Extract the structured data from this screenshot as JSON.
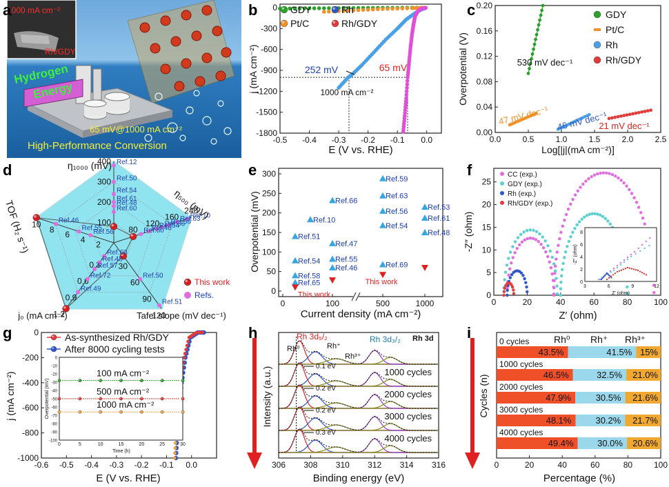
{
  "labels": {
    "a": "a",
    "b": "b",
    "c": "c",
    "d": "d",
    "e": "e",
    "f": "f",
    "g": "g",
    "h": "h",
    "i": "i"
  },
  "panel_a": {
    "inset_text": "1000 mA cm⁻²",
    "inset_label": "Rh/GDY",
    "text_hydrogen": "Hydrogen",
    "text_energy": "Energy",
    "text_metric": "65 mV@1000 mA cm⁻²",
    "text_conversion": "High-Performance Conversion",
    "colors": {
      "sky": "#8fc3ea",
      "sea": "#1a5f9e",
      "green": "#3ef03e",
      "yellow": "#f4ef3a"
    }
  },
  "chart_data": [
    {
      "id": "b",
      "type": "scatter",
      "xlabel": "E (V vs. RHE)",
      "ylabel": "j (mA cm⁻²)",
      "xlim": [
        -0.5,
        0.05
      ],
      "ylim": [
        -1800,
        50
      ],
      "xticks": [
        "-0.5",
        "-0.4",
        "-0.3",
        "-0.2",
        "-0.1",
        "0.0"
      ],
      "yticks": [
        "0",
        "-300",
        "-600",
        "-900",
        "-1200",
        "-1500",
        "-1800"
      ],
      "legend": [
        "GDY",
        "Pt/C",
        "Rh",
        "Rh/GDY"
      ],
      "colors": {
        "GDY": "#2aa02a",
        "Pt/C": "#f0922b",
        "Rh": "#2f56c9",
        "Rh/GDY": "#e33a3a",
        "RhLine": "#4aa0e6",
        "RhGDYLine": "#e14fd6"
      },
      "series": [
        {
          "name": "GDY",
          "points": [
            [
              -0.5,
              -15
            ],
            [
              -0.4,
              -10
            ],
            [
              -0.3,
              -7
            ],
            [
              -0.2,
              -4
            ],
            [
              -0.1,
              -2
            ],
            [
              0.0,
              0
            ]
          ]
        },
        {
          "name": "Pt/C",
          "points": [
            [
              -0.35,
              -60
            ],
            [
              -0.25,
              -40
            ],
            [
              -0.15,
              -20
            ],
            [
              -0.05,
              -8
            ],
            [
              0.0,
              0
            ]
          ]
        },
        {
          "name": "Rh",
          "points": [
            [
              -0.3,
              -1150
            ],
            [
              -0.27,
              -1010
            ],
            [
              -0.252,
              -950
            ],
            [
              -0.22,
              -820
            ],
            [
              -0.18,
              -640
            ],
            [
              -0.14,
              -460
            ],
            [
              -0.1,
              -300
            ],
            [
              -0.07,
              -170
            ],
            [
              -0.04,
              -80
            ],
            [
              -0.02,
              -30
            ],
            [
              0.0,
              0
            ]
          ]
        },
        {
          "name": "Rh/GDY",
          "points": [
            [
              -0.08,
              -1780
            ],
            [
              -0.075,
              -1550
            ],
            [
              -0.07,
              -1300
            ],
            [
              -0.065,
              -1000
            ],
            [
              -0.06,
              -780
            ],
            [
              -0.055,
              -560
            ],
            [
              -0.05,
              -380
            ],
            [
              -0.045,
              -240
            ],
            [
              -0.04,
              -130
            ],
            [
              -0.03,
              -50
            ],
            [
              -0.02,
              -15
            ],
            [
              0.0,
              0
            ]
          ]
        }
      ],
      "annotations": [
        "252 mV",
        "65 mV",
        "1000 mA cm⁻²"
      ]
    },
    {
      "id": "c",
      "type": "scatter",
      "xlabel": "Log[|j|(mA cm⁻²)]",
      "ylabel": "Overpotential (V)",
      "xlim": [
        0.0,
        2.5
      ],
      "ylim": [
        0.0,
        0.2
      ],
      "xticks": [
        "0.0",
        "0.5",
        "1.0",
        "1.5",
        "2.0",
        "2.5"
      ],
      "yticks": [
        "0.00",
        "0.04",
        "0.08",
        "0.12",
        "0.16",
        "0.20"
      ],
      "legend": [
        "GDY",
        "Pt/C",
        "Rh",
        "Rh/GDY"
      ],
      "colors": {
        "GDY": "#2aa02a",
        "Pt/C": "#f0922b",
        "Rh": "#4aa0e6",
        "Rh/GDY": "#e33a3a"
      },
      "series": [
        {
          "name": "GDY",
          "x": [
            0.5,
            0.72
          ],
          "y": [
            0.093,
            0.2
          ]
        },
        {
          "name": "Pt/C",
          "x": [
            0.22,
            0.62
          ],
          "y": [
            0.012,
            0.03
          ]
        },
        {
          "name": "Rh",
          "x": [
            0.95,
            1.42
          ],
          "y": [
            0.005,
            0.028
          ]
        },
        {
          "name": "Rh/GDY",
          "x": [
            1.72,
            2.35
          ],
          "y": [
            0.022,
            0.035
          ]
        }
      ],
      "annotations": [
        "530 mV dec⁻¹",
        "47 mV dec⁻¹",
        "46 mV dec⁻¹",
        "21 mV dec⁻¹"
      ]
    },
    {
      "id": "d",
      "type": "radar",
      "axes": [
        "η₁₀₀₀ (mV)",
        "η₅₀₀ (mV)",
        "Tafel slope (mV dec⁻¹)",
        "j₀ (mA cm⁻²)",
        "TOF (H₂ s⁻¹)"
      ],
      "axis_ticks": [
        [
          "100",
          "200",
          "300",
          "400"
        ],
        [
          "80",
          "120",
          "160",
          "240"
        ],
        [
          "30",
          "60",
          "90",
          "120"
        ],
        [
          "0.3",
          "0.6",
          "0.9",
          "1.2"
        ],
        [
          "2",
          "4",
          "6",
          "8",
          "10"
        ]
      ],
      "legend": [
        "This work",
        "Refs."
      ],
      "ref_labels": [
        "Ref.12",
        "Ref.50",
        "Ref.54",
        "Ref.61",
        "Ref.48",
        "Ref.60",
        "Ref.56",
        "Ref.10",
        "Ref.63",
        "Ref.56",
        "Ref.54",
        "Ref.48",
        "Ref.60",
        "Ref.46",
        "Ref.55",
        "Ref.56",
        "Ref.60",
        "Ref.48",
        "Ref.57",
        "Ref.72",
        "Ref.49",
        "Ref.50",
        "Ref.51"
      ],
      "colors": {
        "fill": "#8fe4ef",
        "this_work": "#d42020",
        "refs": "#e06ce0",
        "line": "#3b3b3b"
      }
    },
    {
      "id": "e",
      "type": "scatter",
      "xlabel": "Current density (mA cm⁻²)",
      "ylabel": "Overpotential (mV)",
      "xticks": [
        "0",
        "100",
        "500",
        "1000"
      ],
      "yticks": [
        "0",
        "50",
        "100",
        "150",
        "200",
        "250",
        "300"
      ],
      "ylim": [
        0,
        300
      ],
      "points": [
        {
          "x": 10,
          "y": 140,
          "label": "Ref.51"
        },
        {
          "x": 10,
          "y": 78,
          "label": "Ref.54"
        },
        {
          "x": 10,
          "y": 40,
          "label": "Ref.58"
        },
        {
          "x": 10,
          "y": 22,
          "label": "Ref.65"
        },
        {
          "x": 10,
          "y": 10,
          "label": "This work",
          "work": true
        },
        {
          "x": 50,
          "y": 183,
          "label": "Ref.10"
        },
        {
          "x": 100,
          "y": 232,
          "label": "Ref.66"
        },
        {
          "x": 100,
          "y": 122,
          "label": "Ref.47"
        },
        {
          "x": 100,
          "y": 82,
          "label": "Ref.55"
        },
        {
          "x": 100,
          "y": 60,
          "label": "Ref.46"
        },
        {
          "x": 100,
          "y": 28,
          "label": "",
          "work": true
        },
        {
          "x": 500,
          "y": 288,
          "label": "Ref.59"
        },
        {
          "x": 500,
          "y": 244,
          "label": "Ref.63"
        },
        {
          "x": 500,
          "y": 205,
          "label": "Ref.56"
        },
        {
          "x": 500,
          "y": 168,
          "label": "Ref.54"
        },
        {
          "x": 500,
          "y": 68,
          "label": "Ref.69"
        },
        {
          "x": 500,
          "y": 42,
          "label": "This work",
          "work": true
        },
        {
          "x": 1000,
          "y": 215,
          "label": "Ref.53"
        },
        {
          "x": 1000,
          "y": 187,
          "label": "Ref.61"
        },
        {
          "x": 1000,
          "y": 150,
          "label": "Ref.48"
        },
        {
          "x": 1000,
          "y": 60,
          "label": "",
          "work": true
        }
      ],
      "colors": {
        "ref": "#33a8e0",
        "work": "#e02020"
      }
    },
    {
      "id": "f",
      "type": "scatter",
      "xlabel": "Z′ (ohm)",
      "ylabel": "-Z″ (ohm)",
      "xlim": [
        0,
        100
      ],
      "ylim": [
        0,
        28
      ],
      "xticks": [
        "0",
        "20",
        "40",
        "60",
        "80",
        "100"
      ],
      "yticks": [
        "0",
        "5",
        "10",
        "15",
        "20",
        "25"
      ],
      "legend": [
        "CC (exp.)",
        "GDY (exp.)",
        "Rh (exp.)",
        "Rh/GDY (exp.)"
      ],
      "colors": {
        "CC": "#e06ce0",
        "GDY": "#5ccfd0",
        "Rh": "#2f56c9",
        "Rh/GDY": "#e33a3a"
      },
      "inset": {
        "xlabel": "Z′ (ohm)",
        "ylabel": "-Z″ (ohm)",
        "xticks": [
          "3",
          "6",
          "9",
          "12"
        ],
        "yticks": [
          "0",
          "2",
          "4",
          "6",
          "8"
        ]
      }
    },
    {
      "id": "g",
      "type": "line",
      "xlabel": "E (V vs. RHE)",
      "ylabel": "j (mA cm⁻²)",
      "xlim": [
        -0.6,
        0.1
      ],
      "ylim": [
        -1000,
        0
      ],
      "xticks": [
        "-0.6",
        "-0.5",
        "-0.4",
        "-0.3",
        "-0.2",
        "-0.1",
        "0.0"
      ],
      "yticks": [
        "0",
        "-200",
        "-400",
        "-600",
        "-800",
        "-1000"
      ],
      "legend": [
        "As-synthesized Rh/GDY",
        "After 8000 cycling tests"
      ],
      "colors": {
        "as": "#e33a3a",
        "after": "#2f56c9",
        "green": "#2aa02a",
        "orange": "#f0a040"
      },
      "inset": {
        "xlabel": "Time (h)",
        "ylabel": "Overpotential (mV)",
        "xticks": [
          "0",
          "5",
          "10",
          "15",
          "20",
          "25",
          "30"
        ],
        "yticks": [
          "0",
          "-10",
          "-20",
          "-30",
          "-40",
          "-50",
          "-60",
          "-70",
          "-80",
          "-90",
          "-100"
        ],
        "series": [
          {
            "name": "100 mA cm⁻²",
            "value": -28
          },
          {
            "name": "500 mA cm⁻²",
            "value": -50
          },
          {
            "name": "1000 mA cm⁻²",
            "value": -66
          }
        ]
      }
    },
    {
      "id": "h",
      "type": "line",
      "xlabel": "Binding energy (eV)",
      "ylabel": "Intensity (a.u.)",
      "xlim": [
        306,
        316
      ],
      "xticks": [
        "306",
        "308",
        "310",
        "312",
        "314",
        "316"
      ],
      "title": "Rh 3d",
      "peak_labels": [
        "Rh⁰",
        "Rh 3d₅/₂",
        "Rh⁺",
        "Rh³⁺",
        "Rh 3d₃/₂"
      ],
      "shifts": [
        "0.1 eV",
        "0.2 eV",
        "0.2 eV",
        "0.3 eV"
      ],
      "cycles": [
        "1000 cycles",
        "2000 cycles",
        "3000 cycles",
        "4000 cycles"
      ],
      "colors": {
        "red": "#e02020",
        "blue": "#2f56c9",
        "purple": "#9b3bc9",
        "olive": "#8a8a20",
        "green": "#2aa02a"
      }
    },
    {
      "id": "i",
      "type": "bar",
      "xlabel": "Percentage (%)",
      "ylabel": "Cycles (n)",
      "xlim": [
        0,
        100
      ],
      "xticks": [
        "0",
        "20",
        "40",
        "60",
        "80",
        "100"
      ],
      "legend": [
        "Rh⁰",
        "Rh⁺",
        "Rh³⁺"
      ],
      "categories": [
        "0 cycles",
        "1000 cycles",
        "2000 cycles",
        "3000 cycles",
        "4000 cycles"
      ],
      "series": [
        {
          "name": "Rh⁰",
          "values": [
            43.5,
            46.5,
            47.9,
            48.1,
            49.4
          ]
        },
        {
          "name": "Rh⁺",
          "values": [
            41.5,
            32.5,
            30.5,
            30.2,
            30.0
          ]
        },
        {
          "name": "Rh³⁺",
          "values": [
            15,
            21.0,
            21.6,
            21.7,
            20.6
          ]
        }
      ],
      "labels": [
        [
          "43.5%",
          "41.5%",
          "15%"
        ],
        [
          "46.5%",
          "32.5%",
          "21.0%"
        ],
        [
          "47.9%",
          "30.5%",
          "21.6%"
        ],
        [
          "48.1%",
          "30.2%",
          "21.7%"
        ],
        [
          "49.4%",
          "30.0%",
          "20.6%"
        ]
      ],
      "colors": {
        "Rh0": "#f05028",
        "Rh+": "#9cd8ec",
        "Rh3+": "#f0a830"
      }
    }
  ]
}
